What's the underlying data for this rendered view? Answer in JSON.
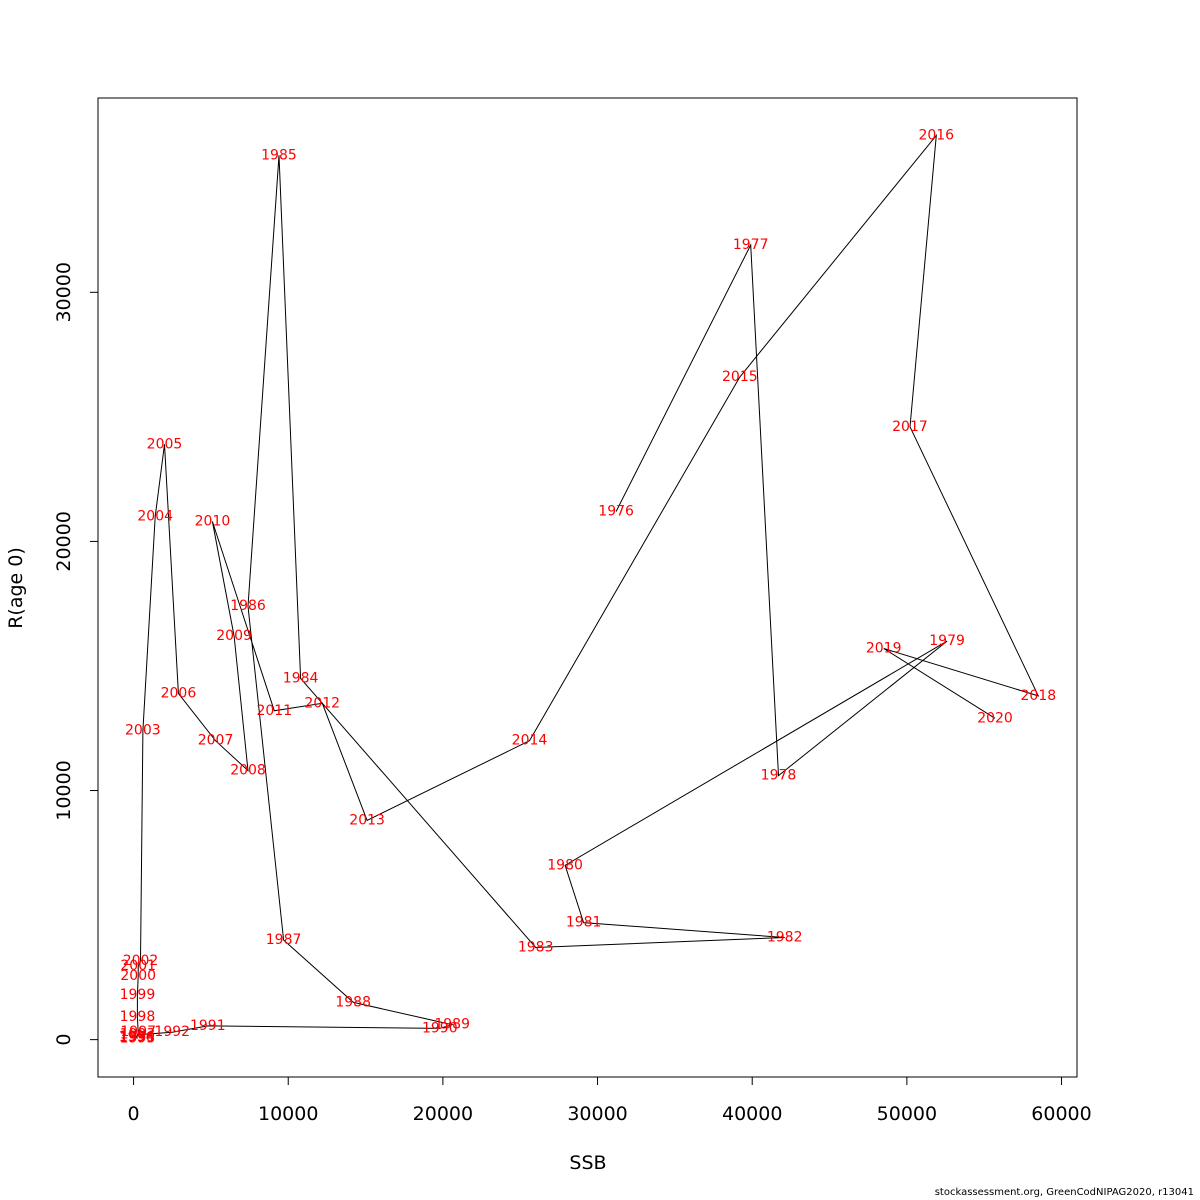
{
  "footer": "stockassessment.org, GreenCodNIPAG2020, r13041",
  "chart_data": {
    "type": "line",
    "title": "",
    "xlabel": "SSB",
    "ylabel": "R(age 0)",
    "xlim": [
      -2300,
      61000
    ],
    "ylim": [
      -1500,
      37800
    ],
    "xticks": [
      0,
      10000,
      20000,
      30000,
      40000,
      50000,
      60000
    ],
    "yticks": [
      0,
      10000,
      20000,
      30000
    ],
    "grid": false,
    "line_color": "#000000",
    "label_color": "#ff0000",
    "points": [
      {
        "year": "1976",
        "x": 31200,
        "y": 21200
      },
      {
        "year": "1977",
        "x": 39900,
        "y": 31900
      },
      {
        "year": "1978",
        "x": 41700,
        "y": 10600
      },
      {
        "year": "1979",
        "x": 52600,
        "y": 16000
      },
      {
        "year": "1980",
        "x": 27900,
        "y": 7000
      },
      {
        "year": "1981",
        "x": 29100,
        "y": 4700
      },
      {
        "year": "1982",
        "x": 42100,
        "y": 4100
      },
      {
        "year": "1983",
        "x": 26000,
        "y": 3700
      },
      {
        "year": "1984",
        "x": 10800,
        "y": 14500
      },
      {
        "year": "1985",
        "x": 9400,
        "y": 35500
      },
      {
        "year": "1986",
        "x": 7400,
        "y": 17400
      },
      {
        "year": "1987",
        "x": 9700,
        "y": 4000
      },
      {
        "year": "1988",
        "x": 14200,
        "y": 1500
      },
      {
        "year": "1989",
        "x": 20600,
        "y": 600
      },
      {
        "year": "1990",
        "x": 19800,
        "y": 450
      },
      {
        "year": "1991",
        "x": 4800,
        "y": 550
      },
      {
        "year": "1992",
        "x": 2500,
        "y": 300
      },
      {
        "year": "1993",
        "x": 250,
        "y": 200
      },
      {
        "year": "1994",
        "x": 200,
        "y": 100
      },
      {
        "year": "1995",
        "x": 250,
        "y": 50
      },
      {
        "year": "1996",
        "x": 200,
        "y": 80
      },
      {
        "year": "1997",
        "x": 300,
        "y": 300
      },
      {
        "year": "1998",
        "x": 250,
        "y": 900
      },
      {
        "year": "1999",
        "x": 250,
        "y": 1800
      },
      {
        "year": "2000",
        "x": 300,
        "y": 2550
      },
      {
        "year": "2001",
        "x": 300,
        "y": 2950
      },
      {
        "year": "2002",
        "x": 450,
        "y": 3150
      },
      {
        "year": "2003",
        "x": 600,
        "y": 12400
      },
      {
        "year": "2004",
        "x": 1400,
        "y": 21000
      },
      {
        "year": "2005",
        "x": 2000,
        "y": 23900
      },
      {
        "year": "2006",
        "x": 2900,
        "y": 13900
      },
      {
        "year": "2007",
        "x": 5300,
        "y": 12000
      },
      {
        "year": "2008",
        "x": 7400,
        "y": 10800
      },
      {
        "year": "2009",
        "x": 6500,
        "y": 16200
      },
      {
        "year": "2010",
        "x": 5100,
        "y": 20800
      },
      {
        "year": "2011",
        "x": 9100,
        "y": 13200
      },
      {
        "year": "2012",
        "x": 12200,
        "y": 13500
      },
      {
        "year": "2013",
        "x": 15100,
        "y": 8800
      },
      {
        "year": "2014",
        "x": 25600,
        "y": 12000
      },
      {
        "year": "2015",
        "x": 39200,
        "y": 26600
      },
      {
        "year": "2016",
        "x": 51900,
        "y": 36300
      },
      {
        "year": "2017",
        "x": 50200,
        "y": 24600
      },
      {
        "year": "2018",
        "x": 58500,
        "y": 13800
      },
      {
        "year": "2019",
        "x": 48500,
        "y": 15700
      },
      {
        "year": "2020",
        "x": 55700,
        "y": 12900
      }
    ]
  }
}
